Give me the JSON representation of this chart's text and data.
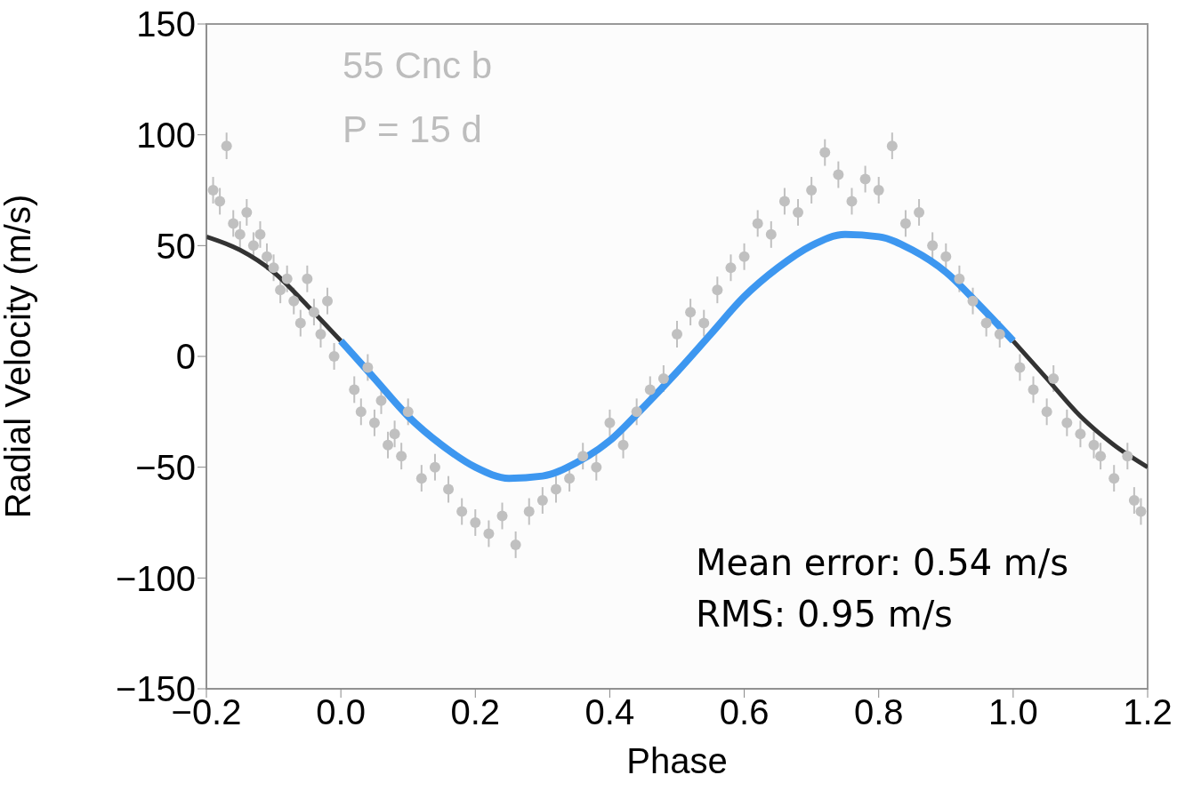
{
  "chart_data": {
    "type": "scatter",
    "xlabel": "Phase",
    "ylabel": "Radial Velocity  (m/s)",
    "xlim": [
      -0.2,
      1.2
    ],
    "ylim": [
      -150,
      150
    ],
    "xticks": [
      {
        "value": -0.2,
        "label": "−0.2"
      },
      {
        "value": 0,
        "label": "0.0"
      },
      {
        "value": 0.2,
        "label": "0.2"
      },
      {
        "value": 0.4,
        "label": "0.4"
      },
      {
        "value": 0.6,
        "label": "0.6"
      },
      {
        "value": 0.8,
        "label": "0.8"
      },
      {
        "value": 1,
        "label": "1.0"
      },
      {
        "value": 1.2,
        "label": "1.2"
      }
    ],
    "yticks": [
      {
        "value": -150,
        "label": "−150"
      },
      {
        "value": -100,
        "label": "−100"
      },
      {
        "value": -50,
        "label": "−50"
      },
      0,
      50,
      100,
      150
    ],
    "annotations": [
      "55 Cnc b",
      "P = 15 d",
      "Mean error: 0.54 m/s",
      "RMS: 0.95 m/s"
    ],
    "series": [
      {
        "color": "#c0c0c0",
        "x": [
          -0.19,
          -0.18,
          -0.17,
          -0.16,
          -0.15,
          -0.14,
          -0.13,
          -0.12,
          -0.11,
          -0.1,
          -0.09,
          -0.08,
          -0.07,
          -0.06,
          -0.05,
          -0.04,
          -0.03,
          -0.02,
          -0.01,
          0.02,
          0.03,
          0.04,
          0.05,
          0.06,
          0.07,
          0.08,
          0.09,
          0.1,
          0.12,
          0.14,
          0.16,
          0.18,
          0.2,
          0.22,
          0.24,
          0.26,
          0.28,
          0.3,
          0.32,
          0.34,
          0.36,
          0.38,
          0.4,
          0.42,
          0.44,
          0.46,
          0.48,
          0.5,
          0.52,
          0.54,
          0.56,
          0.58,
          0.6,
          0.62,
          0.64,
          0.66,
          0.68,
          0.7,
          0.72,
          0.74,
          0.76,
          0.78,
          0.8,
          0.82,
          0.84,
          0.86,
          0.88,
          0.9,
          0.92,
          0.94,
          0.96,
          0.98,
          1.01,
          1.03,
          1.05,
          1.06,
          1.08,
          1.1,
          1.12,
          1.13,
          1.15,
          1.17,
          1.18,
          1.19
        ],
        "values": [
          75,
          70,
          95,
          60,
          55,
          65,
          50,
          55,
          45,
          40,
          30,
          35,
          25,
          15,
          35,
          20,
          10,
          25,
          0,
          -15,
          -25,
          -5,
          -30,
          -20,
          -40,
          -35,
          -45,
          -25,
          -55,
          -50,
          -60,
          -70,
          -75,
          -80,
          -72,
          -85,
          -70,
          -65,
          -60,
          -55,
          -45,
          -50,
          -30,
          -40,
          -25,
          -15,
          -10,
          10,
          20,
          15,
          30,
          40,
          45,
          60,
          55,
          70,
          65,
          75,
          92,
          82,
          70,
          80,
          75,
          95,
          60,
          65,
          50,
          45,
          35,
          25,
          15,
          10,
          -5,
          -15,
          -25,
          -10,
          -30,
          -35,
          -40,
          -45,
          -55,
          -45,
          -65,
          -70
        ],
        "errors": [
          6,
          6,
          6,
          6,
          6,
          6,
          6,
          6,
          6,
          6,
          6,
          6,
          6,
          6,
          6,
          6,
          6,
          6,
          6,
          6,
          6,
          6,
          6,
          6,
          6,
          6,
          6,
          6,
          6,
          6,
          6,
          6,
          6,
          6,
          6,
          6,
          6,
          6,
          6,
          6,
          6,
          6,
          6,
          6,
          6,
          6,
          6,
          6,
          6,
          6,
          6,
          6,
          6,
          6,
          6,
          6,
          6,
          6,
          6,
          6,
          6,
          6,
          6,
          6,
          6,
          6,
          6,
          6,
          6,
          6,
          6,
          6,
          6,
          6,
          6,
          6,
          6,
          6,
          6,
          6,
          6,
          6,
          6,
          6
        ]
      },
      {
        "type": "line",
        "color": "#333333",
        "x": [
          -0.2,
          -0.15,
          -0.1,
          -0.05,
          0
        ],
        "values": [
          54,
          48,
          38,
          23,
          7
        ]
      },
      {
        "type": "line",
        "color": "#333333",
        "x": [
          1,
          1.05,
          1.1,
          1.15,
          1.2
        ],
        "values": [
          7,
          -10,
          -27,
          -40,
          -50
        ]
      },
      {
        "type": "line",
        "color": "#3d97f0",
        "x": [
          0,
          0.05,
          0.1,
          0.15,
          0.2,
          0.25,
          0.3,
          0.35,
          0.4,
          0.45,
          0.5,
          0.55,
          0.6,
          0.65,
          0.7,
          0.75,
          0.8,
          0.85,
          0.9,
          0.95,
          1
        ],
        "values": [
          7,
          -10,
          -27,
          -40,
          -50,
          -55,
          -54,
          -48,
          -38,
          -23,
          -7,
          10,
          27,
          40,
          50,
          55,
          54,
          48,
          38,
          23,
          7
        ]
      }
    ]
  }
}
